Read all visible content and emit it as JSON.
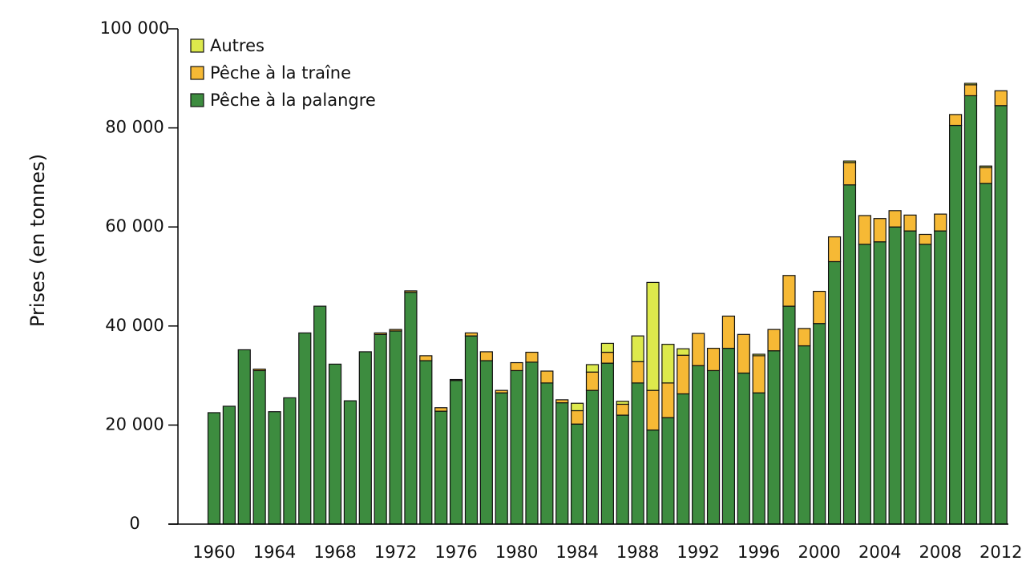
{
  "chart_data": {
    "type": "stacked_bar",
    "y_label": "Prises (en tonnes)",
    "categories": [
      "1960",
      null,
      null,
      null,
      "1964",
      null,
      null,
      null,
      "1968",
      null,
      null,
      null,
      "1972",
      null,
      null,
      null,
      "1976",
      null,
      null,
      null,
      "1980",
      null,
      null,
      null,
      "1984",
      null,
      null,
      null,
      "1988",
      null,
      null,
      null,
      "1992",
      null,
      null,
      null,
      "1996",
      null,
      null,
      null,
      "2000",
      null,
      null,
      null,
      "2004",
      null,
      null,
      null,
      "2008",
      null,
      null,
      null,
      "2012"
    ],
    "series": [
      {
        "name": "Pêche à la palangre",
        "color": "#3d8c3f",
        "values": [
          22500,
          23800,
          35200,
          31000,
          22700,
          25500,
          38600,
          44000,
          32300,
          24900,
          34800,
          38300,
          39000,
          46800,
          33000,
          22800,
          29000,
          38000,
          33000,
          26500,
          31000,
          32700,
          28500,
          24500,
          20200,
          27000,
          32500,
          22000,
          28500,
          19000,
          21500,
          26300,
          32000,
          31000,
          35500,
          30500,
          26500,
          35000,
          44000,
          36000,
          40500,
          53000,
          68500,
          56500,
          57000,
          60000,
          59200,
          56500,
          59200,
          80500,
          86500,
          68800,
          84500
        ]
      },
      {
        "name": "Pêche à la traîne",
        "color": "#f6b935",
        "values": [
          0,
          0,
          0,
          300,
          0,
          0,
          0,
          0,
          0,
          0,
          0,
          300,
          300,
          300,
          1000,
          700,
          200,
          600,
          1800,
          500,
          1600,
          2000,
          2400,
          600,
          2700,
          3700,
          2200,
          2200,
          4300,
          8000,
          7000,
          7800,
          6500,
          4500,
          6500,
          7800,
          7500,
          4300,
          6200,
          3500,
          6500,
          5000,
          4500,
          5800,
          4700,
          3300,
          3200,
          2000,
          3400,
          2200,
          2200,
          3200,
          3000
        ]
      },
      {
        "name": "Autres",
        "color": "#dde94c",
        "values": [
          0,
          0,
          0,
          0,
          0,
          0,
          0,
          0,
          0,
          0,
          0,
          0,
          0,
          0,
          0,
          0,
          0,
          0,
          0,
          0,
          0,
          0,
          0,
          0,
          1500,
          1500,
          1800,
          600,
          5200,
          21800,
          7800,
          1300,
          0,
          0,
          0,
          0,
          300,
          0,
          0,
          0,
          0,
          0,
          300,
          0,
          0,
          0,
          0,
          0,
          0,
          0,
          300,
          300,
          0
        ]
      }
    ],
    "ylim": [
      0,
      100000
    ],
    "yticks": [
      0,
      {
        "value": 20000,
        "label": "20 000"
      },
      {
        "value": 40000,
        "label": "40 000"
      },
      {
        "value": 60000,
        "label": "60 000"
      },
      {
        "value": 80000,
        "label": "80 000"
      },
      {
        "value": 100000,
        "label": "100 000"
      }
    ],
    "legend": "top-left"
  }
}
